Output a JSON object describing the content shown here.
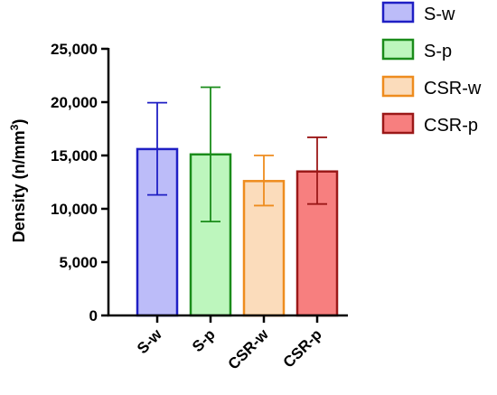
{
  "chart_data": {
    "type": "bar",
    "categories": [
      "S-w",
      "S-p",
      "CSR-w",
      "CSR-p"
    ],
    "values": [
      15600,
      15100,
      12600,
      13500
    ],
    "errors_upper": [
      19950,
      21400,
      15000,
      16700
    ],
    "errors_lower": [
      11300,
      8800,
      10300,
      10450
    ],
    "ylabel_main": "Density (n/mm",
    "ylabel_sup": "3",
    "ylabel_end": ")",
    "ylim": [
      0,
      25000
    ],
    "yticks": [
      0,
      5000,
      10000,
      15000,
      20000,
      25000
    ],
    "ytick_labels": [
      "0",
      "5,000",
      "10,000",
      "15,000",
      "20,000",
      "25,000"
    ],
    "grid": false,
    "legend_position": "top-right",
    "legend": [
      "S-w",
      "S-p",
      "CSR-w",
      "CSR-p"
    ],
    "colors": {
      "fills": [
        "#bcbcf9",
        "#bdf6bd",
        "#fbdcbb",
        "#f77f7f"
      ],
      "strokes": [
        "#1f1fc4",
        "#1a8c1a",
        "#ee8c1e",
        "#9b1818"
      ]
    }
  }
}
